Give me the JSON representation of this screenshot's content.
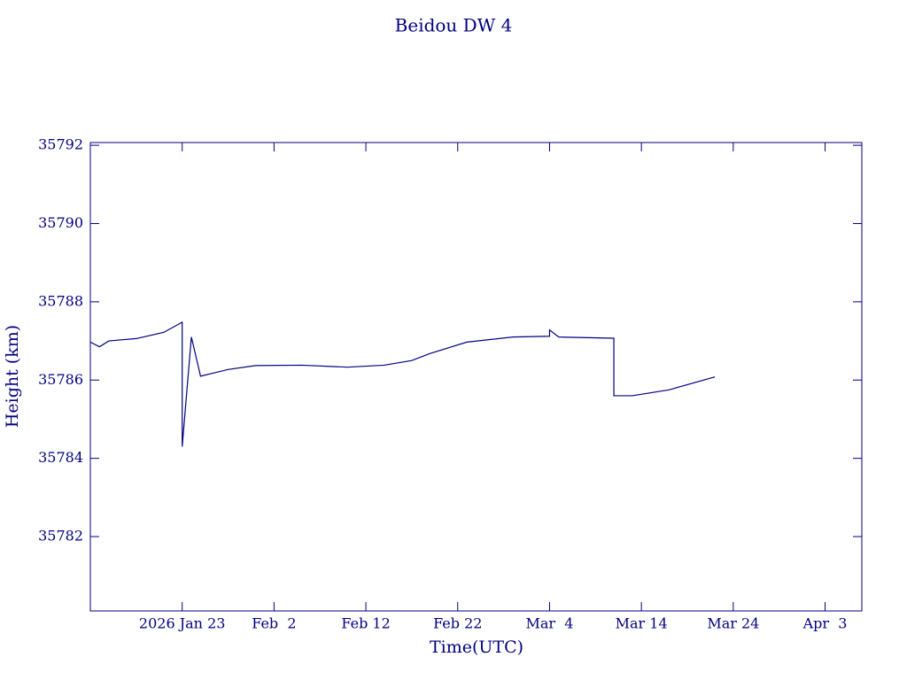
{
  "chart_data": {
    "type": "line",
    "title": "Beidou DW 4",
    "x_label": "Time(UTC)",
    "y_label": "Height (km)",
    "x": [
      "2026-01-13",
      "2026-01-14",
      "2026-01-15",
      "2026-01-18",
      "2026-01-21",
      "2026-01-23",
      "2026-01-23",
      "2026-01-24",
      "2026-01-25",
      "2026-01-28",
      "2026-01-31",
      "2026-02-05",
      "2026-02-10",
      "2026-02-14",
      "2026-02-17",
      "2026-02-19",
      "2026-02-23",
      "2026-02-28",
      "2026-03-04",
      "2026-03-04",
      "2026-03-05",
      "2026-03-11",
      "2026-03-11",
      "2026-03-13",
      "2026-03-17",
      "2026-03-22"
    ],
    "series": [
      {
        "name": "Height",
        "color": "#000080",
        "values": [
          35786.97,
          35786.85,
          35787.0,
          35787.06,
          35787.22,
          35787.48,
          35784.3,
          35787.1,
          35786.1,
          35786.27,
          35786.37,
          35786.38,
          35786.33,
          35786.38,
          35786.5,
          35786.68,
          35786.97,
          35787.1,
          35787.12,
          35787.28,
          35787.1,
          35787.07,
          35785.6,
          35785.6,
          35785.75,
          35786.08
        ]
      }
    ],
    "xlim": [
      "2026-01-13",
      "2026-04-07"
    ],
    "xticks": [
      {
        "value": "2026-01-23",
        "label": "2026 Jan 23"
      },
      {
        "value": "2026-02-02",
        "label": "Feb  2"
      },
      {
        "value": "2026-02-12",
        "label": "Feb 12"
      },
      {
        "value": "2026-02-22",
        "label": "Feb 22"
      },
      {
        "value": "2026-03-04",
        "label": "Mar  4"
      },
      {
        "value": "2026-03-14",
        "label": "Mar 14"
      },
      {
        "value": "2026-03-24",
        "label": "Mar 24"
      },
      {
        "value": "2026-04-03",
        "label": "Apr  3"
      }
    ],
    "ylim": [
      35780.1,
      35792.07
    ],
    "yticks": [
      35782,
      35784,
      35786,
      35788,
      35790,
      35792
    ],
    "color": "#000080"
  }
}
